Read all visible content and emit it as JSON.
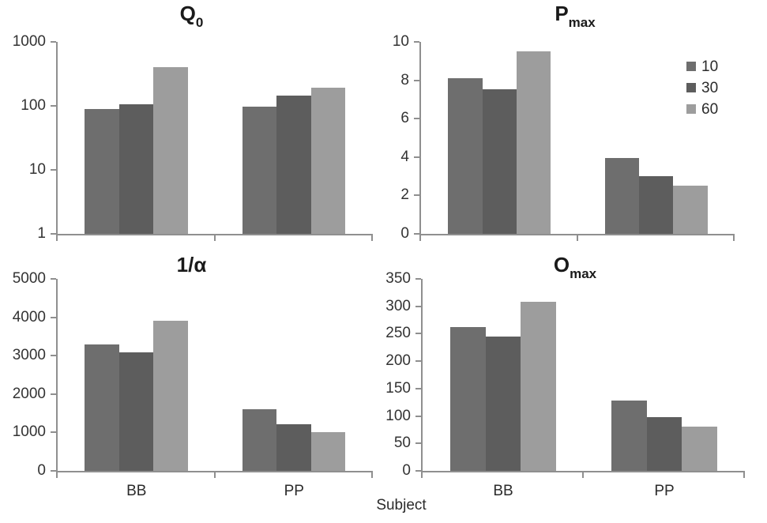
{
  "figure": {
    "x_axis_title": "Subject",
    "background": "#ffffff",
    "colors": {
      "axis": "#8f8f8f",
      "tick_text": "#333333",
      "title_text": "#1a1a1a"
    },
    "legend": {
      "location": "top-right chart, upper right",
      "entries": [
        {
          "label": "10",
          "color": "#6e6e6e"
        },
        {
          "label": "30",
          "color": "#5d5d5d"
        },
        {
          "label": "60",
          "color": "#9d9d9d"
        }
      ]
    }
  },
  "chart_data": [
    {
      "type": "bar",
      "title": "Q0",
      "title_parts": {
        "main": "Q",
        "sub": "0"
      },
      "categories": [
        "BB",
        "PP"
      ],
      "series": [
        {
          "name": "10",
          "color": "#6e6e6e",
          "values": [
            90,
            97
          ]
        },
        {
          "name": "30",
          "color": "#5d5d5d",
          "values": [
            107,
            145
          ]
        },
        {
          "name": "60",
          "color": "#9d9d9d",
          "values": [
            400,
            195
          ]
        }
      ],
      "yscale": "log",
      "ylim": [
        1,
        1000
      ],
      "yticks": [
        1000,
        100,
        10,
        1
      ],
      "grid": false,
      "show_x_labels": false
    },
    {
      "type": "bar",
      "title": "Pmax",
      "title_parts": {
        "main": "P",
        "sub": "max"
      },
      "categories": [
        "BB",
        "PP"
      ],
      "series": [
        {
          "name": "10",
          "color": "#6e6e6e",
          "values": [
            8.1,
            3.95
          ]
        },
        {
          "name": "30",
          "color": "#5d5d5d",
          "values": [
            7.55,
            3.0
          ]
        },
        {
          "name": "60",
          "color": "#9d9d9d",
          "values": [
            9.5,
            2.5
          ]
        }
      ],
      "yscale": "linear",
      "ylim": [
        0,
        10
      ],
      "yticks": [
        10,
        8,
        6,
        4,
        2,
        0
      ],
      "grid": false,
      "has_legend": true,
      "show_x_labels": false
    },
    {
      "type": "bar",
      "title": "1/α",
      "title_parts": {
        "main": "1/α",
        "sub": ""
      },
      "categories": [
        "BB",
        "PP"
      ],
      "series": [
        {
          "name": "10",
          "color": "#6e6e6e",
          "values": [
            3300,
            1600
          ]
        },
        {
          "name": "30",
          "color": "#5d5d5d",
          "values": [
            3080,
            1220
          ]
        },
        {
          "name": "60",
          "color": "#9d9d9d",
          "values": [
            3900,
            1000
          ]
        }
      ],
      "yscale": "linear",
      "ylim": [
        0,
        5000
      ],
      "yticks": [
        5000,
        4000,
        3000,
        2000,
        1000,
        0
      ],
      "grid": false,
      "show_x_labels": true
    },
    {
      "type": "bar",
      "title": "Omax",
      "title_parts": {
        "main": "O",
        "sub": "max"
      },
      "categories": [
        "BB",
        "PP"
      ],
      "series": [
        {
          "name": "10",
          "color": "#6e6e6e",
          "values": [
            262,
            128
          ]
        },
        {
          "name": "30",
          "color": "#5d5d5d",
          "values": [
            245,
            98
          ]
        },
        {
          "name": "60",
          "color": "#9d9d9d",
          "values": [
            308,
            80
          ]
        }
      ],
      "yscale": "linear",
      "ylim": [
        0,
        350
      ],
      "yticks": [
        350,
        300,
        250,
        200,
        150,
        100,
        50,
        0
      ],
      "grid": false,
      "show_x_labels": true
    }
  ]
}
